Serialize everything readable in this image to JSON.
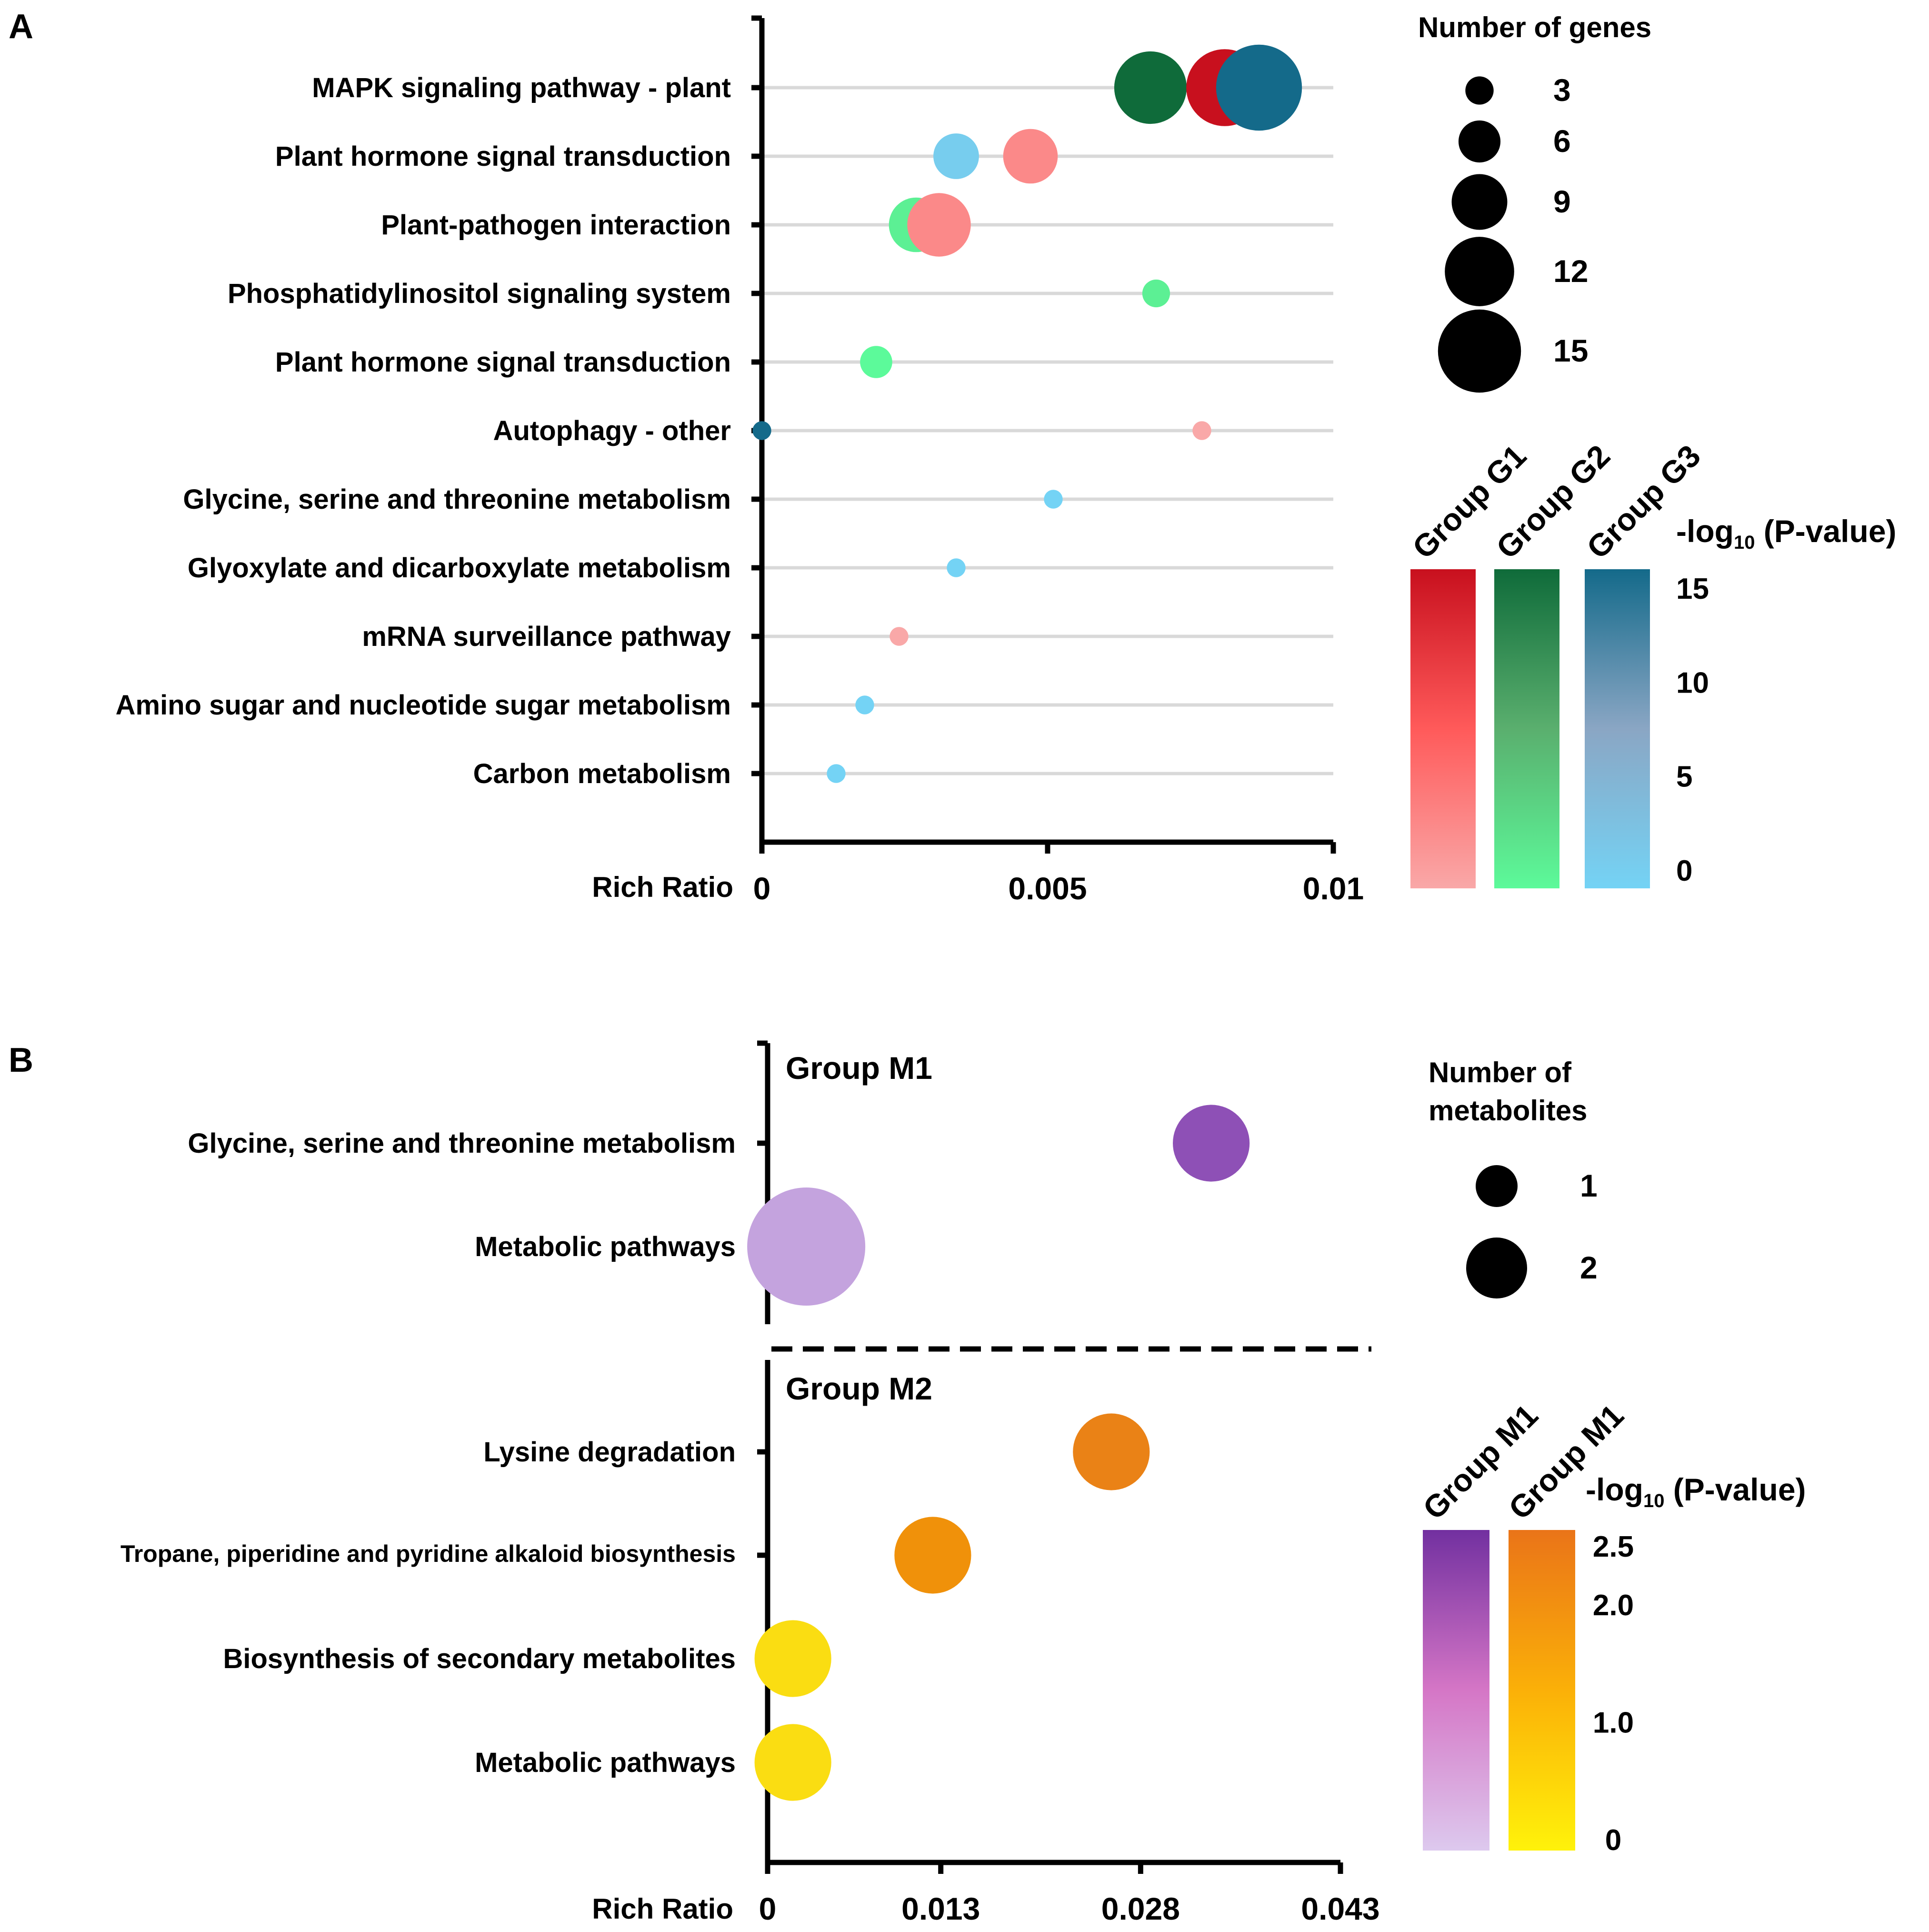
{
  "chart_data": [
    {
      "panel": "A",
      "type": "scatter",
      "title": "",
      "xlabel": "Rich Ratio",
      "ylabel": "",
      "xlim": [
        0,
        0.01
      ],
      "x_ticks": [
        0,
        0.005,
        0.01
      ],
      "x_tick_labels": [
        "0",
        "0.005",
        "0.01"
      ],
      "grid": true,
      "categories": [
        "MAPK signaling pathway - plant",
        "Plant hormone signal transduction",
        "Plant-pathogen interaction",
        "Phosphatidylinositol signaling system",
        "Plant hormone signal transduction",
        "Autophagy - other",
        "Glycine, serine and threonine metabolism",
        "Glyoxylate and dicarboxylate metabolism",
        "mRNA surveillance pathway",
        "Amino sugar and nucleotide sugar metabolism",
        "Carbon metabolism"
      ],
      "points": [
        {
          "row": 0,
          "x": 0.0068,
          "genes": 13,
          "group": "G2",
          "neglog10p": 15
        },
        {
          "row": 0,
          "x": 0.0081,
          "genes": 14,
          "group": "G1",
          "neglog10p": 15
        },
        {
          "row": 0,
          "x": 0.0087,
          "genes": 16,
          "group": "G3",
          "neglog10p": 15
        },
        {
          "row": 1,
          "x": 0.0034,
          "genes": 7,
          "group": "G3",
          "neglog10p": 1
        },
        {
          "row": 1,
          "x": 0.0047,
          "genes": 9,
          "group": "G1",
          "neglog10p": 3
        },
        {
          "row": 2,
          "x": 0.0027,
          "genes": 9,
          "group": "G2",
          "neglog10p": 1
        },
        {
          "row": 2,
          "x": 0.0031,
          "genes": 11,
          "group": "G1",
          "neglog10p": 3
        },
        {
          "row": 3,
          "x": 0.0069,
          "genes": 3,
          "group": "G2",
          "neglog10p": 1
        },
        {
          "row": 4,
          "x": 0.002,
          "genes": 4,
          "group": "G2",
          "neglog10p": 0
        },
        {
          "row": 5,
          "x": 0.0,
          "genes": 1,
          "group": "G3",
          "neglog10p": 15
        },
        {
          "row": 5,
          "x": 0.0077,
          "genes": 1,
          "group": "G1",
          "neglog10p": 0
        },
        {
          "row": 6,
          "x": 0.0051,
          "genes": 1,
          "group": "G3",
          "neglog10p": 0
        },
        {
          "row": 7,
          "x": 0.0034,
          "genes": 1,
          "group": "G3",
          "neglog10p": 0
        },
        {
          "row": 8,
          "x": 0.0024,
          "genes": 1,
          "group": "G1",
          "neglog10p": 0
        },
        {
          "row": 9,
          "x": 0.0018,
          "genes": 1,
          "group": "G3",
          "neglog10p": 0
        },
        {
          "row": 10,
          "x": 0.0013,
          "genes": 1,
          "group": "G3",
          "neglog10p": 0
        }
      ],
      "size_legend": {
        "title": "Number of genes",
        "values": [
          3,
          6,
          9,
          12,
          15
        ],
        "labels": [
          "3",
          "6",
          "9",
          "12",
          "15"
        ]
      },
      "color_legend": {
        "title_prefix": "-log",
        "title_sub": "10",
        "title_suffix": " (P-value)",
        "groups": [
          {
            "label": "Group G1",
            "top": "#c8101e",
            "mid": "#ff5a5a",
            "bottom": "#f9a8a8"
          },
          {
            "label": "Group G2",
            "top": "#0f6b3a",
            "mid": "#5aaf6e",
            "bottom": "#5cfa9a"
          },
          {
            "label": "Group G3",
            "top": "#146a8a",
            "mid": "#8aa6c4",
            "bottom": "#74d3f5"
          }
        ],
        "range": [
          0,
          15
        ],
        "ticks": [
          15,
          10,
          5,
          0
        ],
        "tick_labels": [
          "15",
          "10",
          "5",
          "0"
        ]
      }
    },
    {
      "panel": "B",
      "type": "scatter",
      "title": "",
      "xlabel": "Rich Ratio",
      "ylabel": "",
      "xlim": [
        0,
        0.043
      ],
      "x_ticks": [
        0,
        0.013,
        0.028,
        0.043
      ],
      "x_tick_labels": [
        "0",
        "0.013",
        "0.028",
        "0.043"
      ],
      "grid": false,
      "groups": [
        {
          "label": "Group M1",
          "categories": [
            "Glycine, serine and threonine metabolism",
            "Metabolic pathways"
          ],
          "points": [
            {
              "row": 0,
              "x": 0.0333,
              "metabolites": 1.3,
              "color": "#8e50b6"
            },
            {
              "row": 1,
              "x": 0.0029,
              "metabolites": 2,
              "color": "#c4a3de"
            }
          ]
        },
        {
          "label": "Group M2",
          "categories": [
            "Lysine degradation",
            "Tropane, piperidine and pyridine alkaloid biosynthesis",
            "Biosynthesis of secondary metabolites",
            "Metabolic pathways"
          ],
          "points": [
            {
              "row": 0,
              "x": 0.0258,
              "metabolites": 1.3,
              "color": "#ea8216"
            },
            {
              "row": 1,
              "x": 0.0124,
              "metabolites": 1.3,
              "color": "#f0910a"
            },
            {
              "row": 2,
              "x": 0.0019,
              "metabolites": 1.3,
              "color": "#fadd12"
            },
            {
              "row": 3,
              "x": 0.0019,
              "metabolites": 1.3,
              "color": "#fadd12"
            }
          ]
        }
      ],
      "size_legend": {
        "title_line1": "Number of",
        "title_line2": "metabolites",
        "values": [
          1,
          2
        ],
        "labels": [
          "1",
          "2"
        ]
      },
      "color_legend": {
        "title_prefix": "-log",
        "title_sub": "10",
        "title_suffix": " (P-value)",
        "groups": [
          {
            "label": "Group M1",
            "top": "#7230a0",
            "mid": "#d576c6",
            "bottom": "#ddc9ee"
          },
          {
            "label": "Group M1",
            "top": "#ea7418",
            "mid": "#fbb008",
            "bottom": "#fff20a"
          }
        ],
        "range": [
          0,
          2.5
        ],
        "ticks": [
          2.5,
          2.0,
          1.0,
          0
        ],
        "tick_labels": [
          "2.5",
          "2.0",
          "1.0",
          "0"
        ]
      }
    }
  ],
  "panel_labels": [
    "A",
    "B"
  ]
}
